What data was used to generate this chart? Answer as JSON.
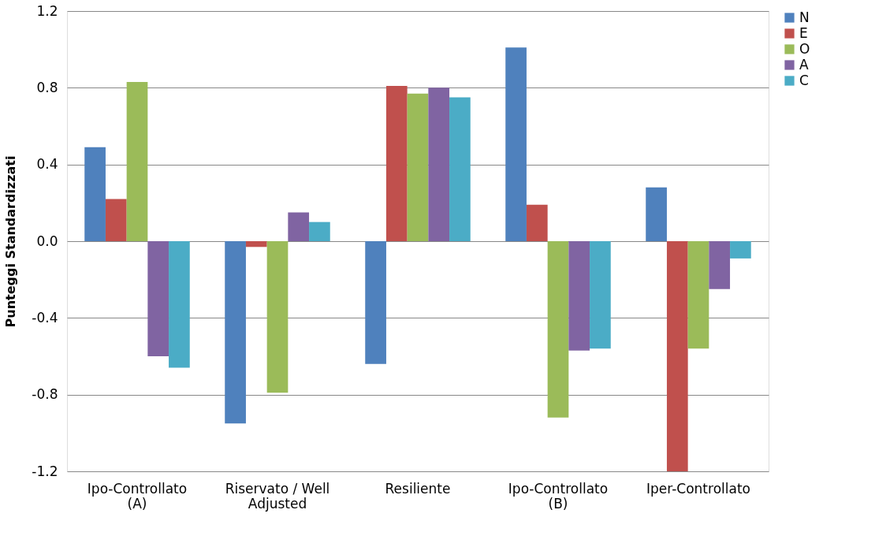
{
  "chart_data": {
    "type": "bar",
    "ylabel": "Punteggi  Standardizzati",
    "categories": [
      "Ipo-Controllato\n(A)",
      "Riservato / Well\nAdjusted",
      "Resiliente",
      "Ipo-Controllato\n(B)",
      "Iper-Controllato"
    ],
    "series": [
      {
        "name": "N",
        "color": "#4f81bd",
        "values": [
          0.49,
          -0.95,
          -0.64,
          1.01,
          0.28
        ]
      },
      {
        "name": "E",
        "color": "#c0504d",
        "values": [
          0.22,
          -0.03,
          0.81,
          0.19,
          -1.2
        ]
      },
      {
        "name": "O",
        "color": "#9bbb59",
        "values": [
          0.83,
          -0.79,
          0.77,
          -0.92,
          -0.56
        ]
      },
      {
        "name": "A",
        "color": "#8064a2",
        "values": [
          -0.6,
          0.15,
          0.8,
          -0.57,
          -0.25
        ]
      },
      {
        "name": "C",
        "color": "#4bacc6",
        "values": [
          -0.66,
          0.1,
          0.75,
          -0.56,
          -0.09
        ]
      }
    ],
    "ylim": [
      -1.2,
      1.2
    ],
    "yticks": [
      {
        "value": -1.2,
        "label": "-1.2"
      },
      {
        "value": -0.8,
        "label": "-0.8"
      },
      {
        "value": -0.4,
        "label": "-0.4"
      },
      {
        "value": 0,
        "label": "0.0"
      },
      {
        "value": 0.4,
        "label": "0.4"
      },
      {
        "value": 0.8,
        "label": "0.8"
      },
      {
        "value": 1.2,
        "label": "1.2"
      }
    ],
    "grid": "y",
    "legend": "right"
  }
}
